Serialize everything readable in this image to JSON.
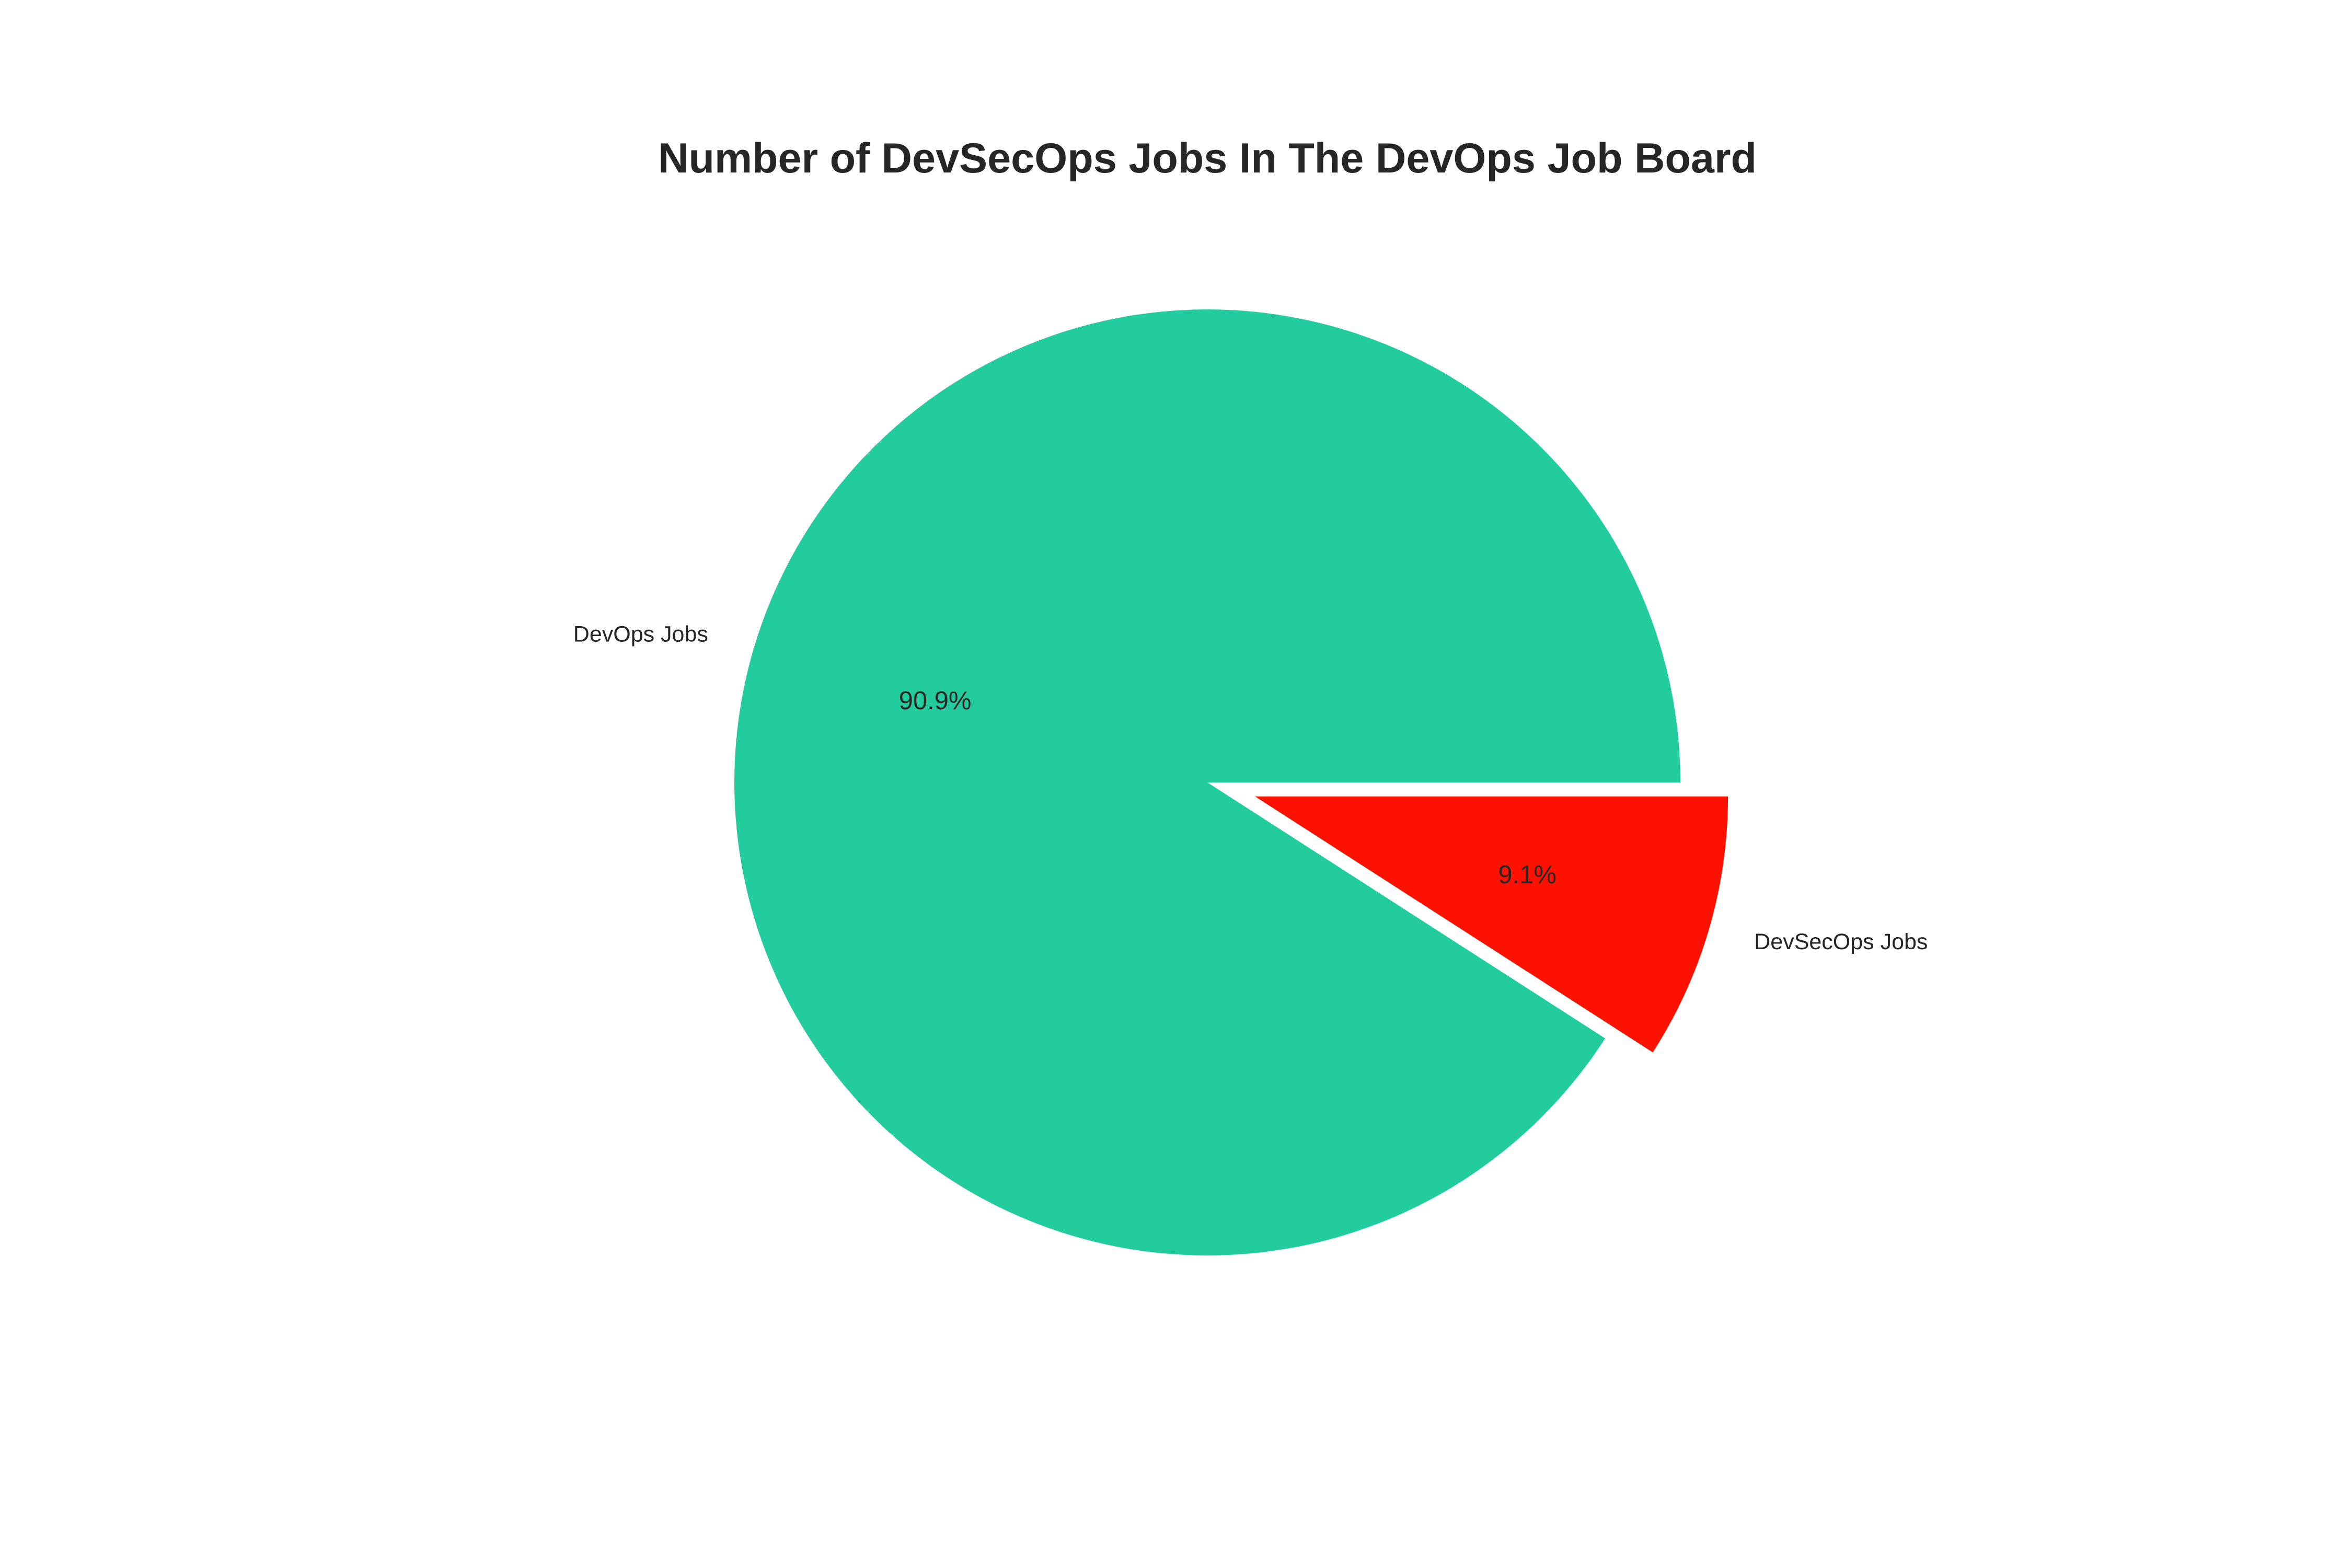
{
  "chart_data": {
    "type": "pie",
    "title": "Number of DevSecOps Jobs In The DevOps Job Board",
    "slices": [
      {
        "label": "DevOps Jobs",
        "percent": 90.9,
        "percent_label": "90.9%",
        "color": "#22cc9c",
        "exploded": false
      },
      {
        "label": "DevSecOps Jobs",
        "percent": 9.1,
        "percent_label": "9.1%",
        "color": "#ff1100",
        "exploded": true
      }
    ],
    "start_angle_deg": 0,
    "direction": "counterclockwise",
    "legend": "none"
  }
}
